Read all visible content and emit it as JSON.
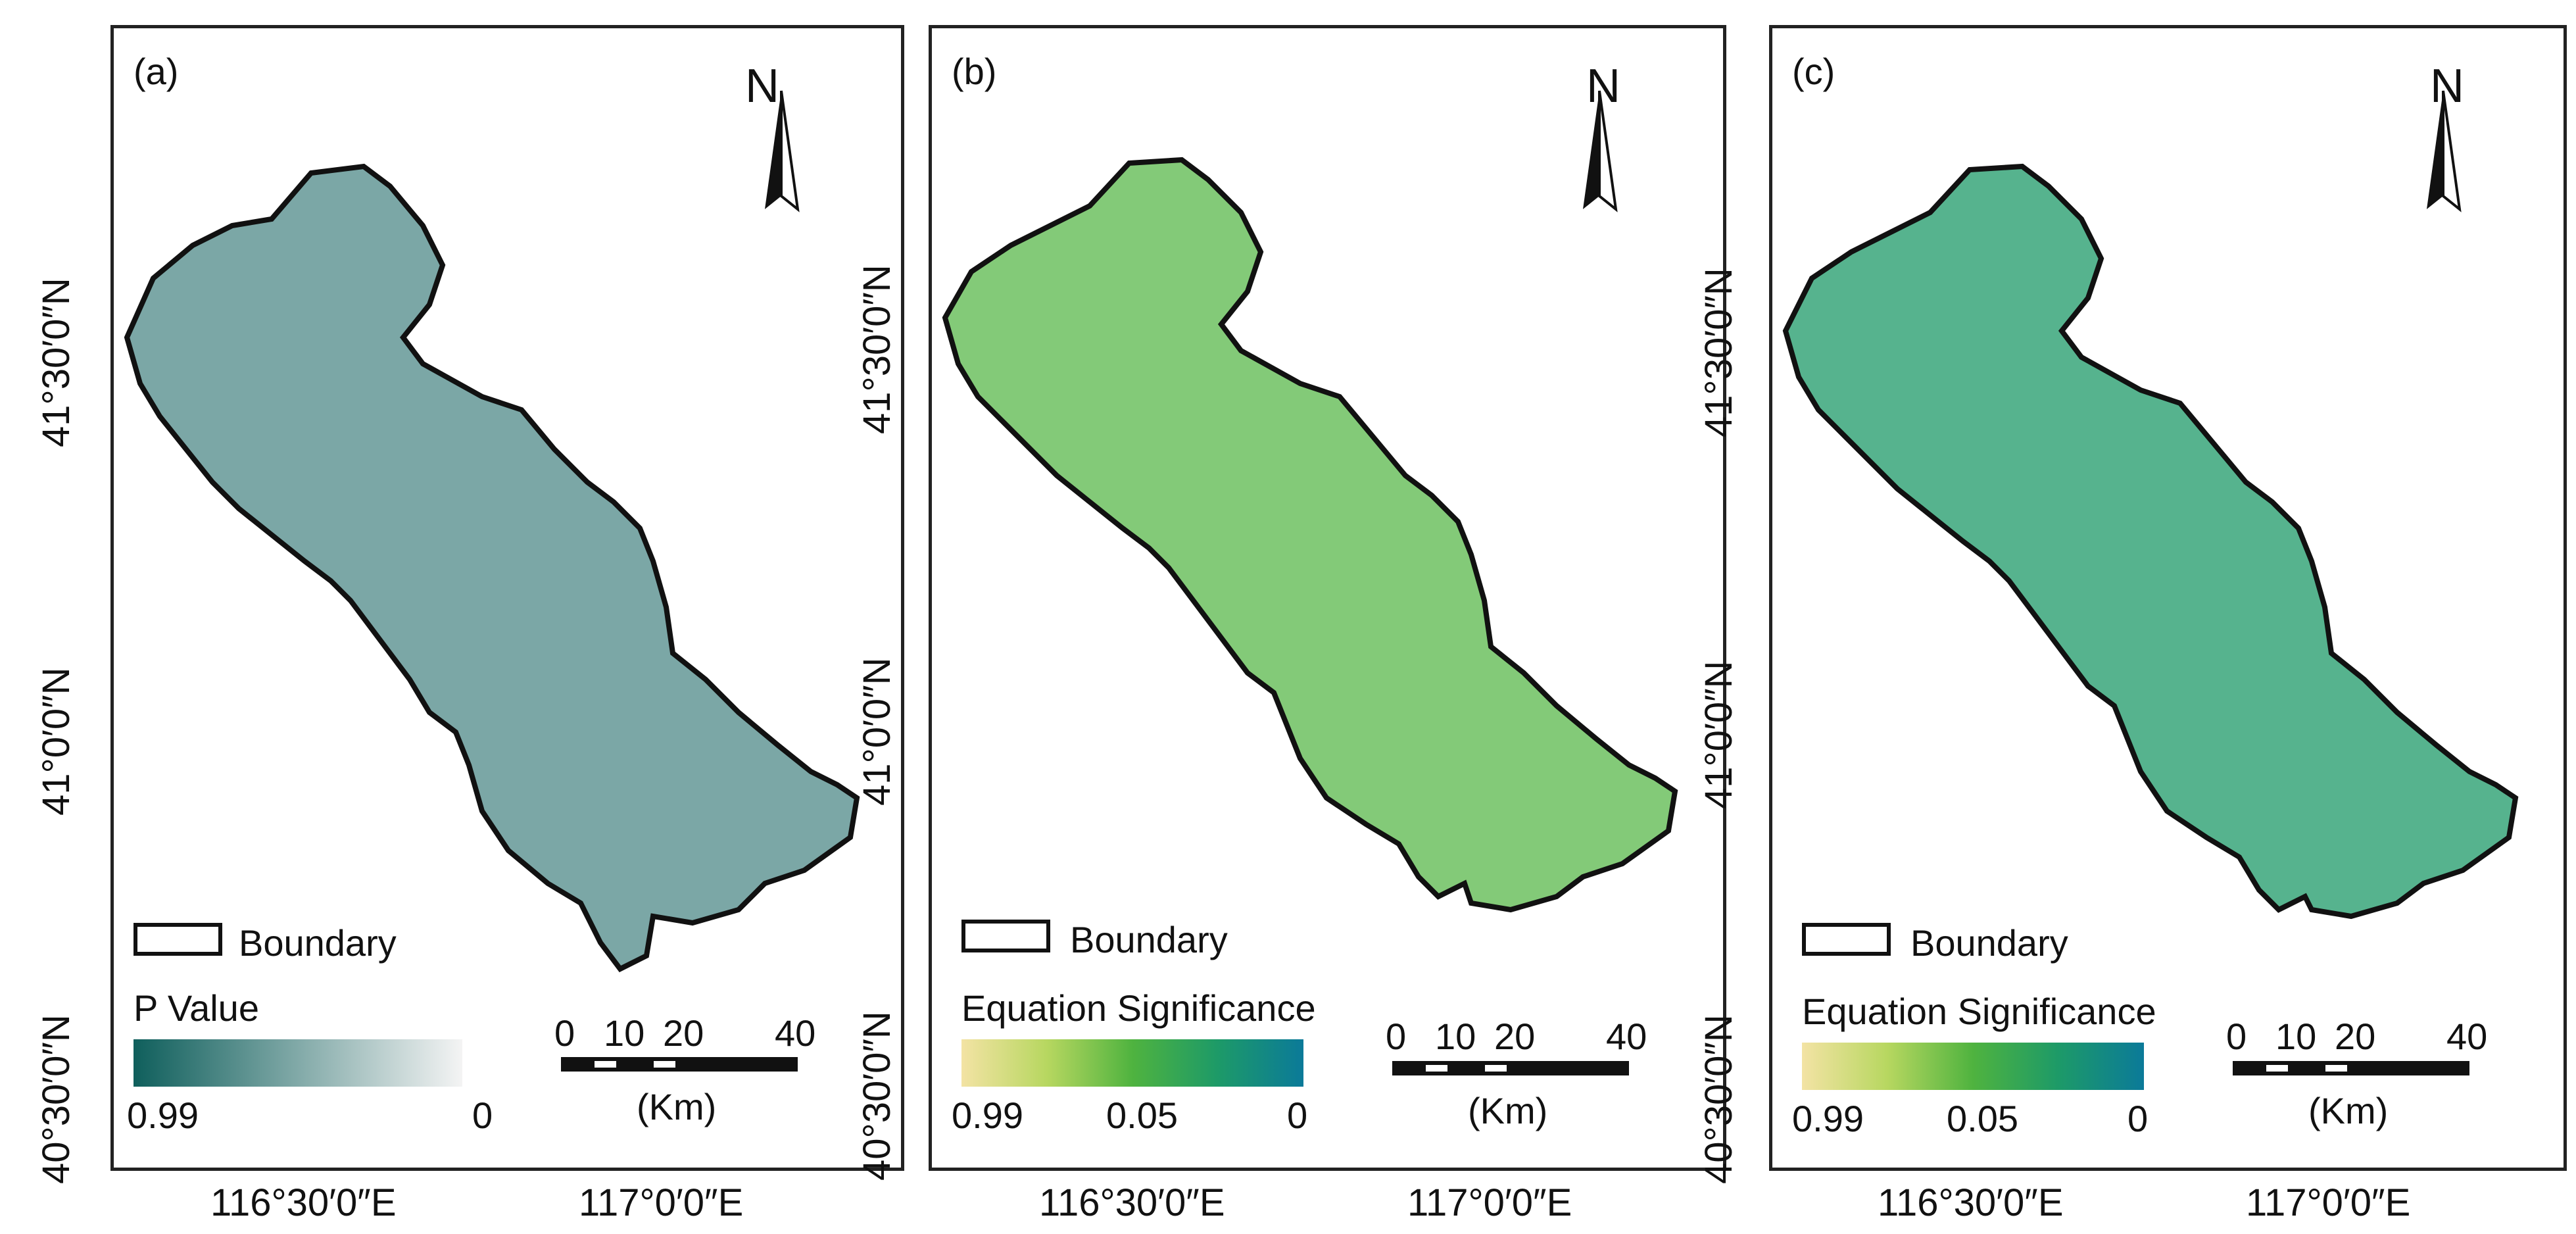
{
  "panels": [
    {
      "id": "a",
      "label": "(a)",
      "north": "N",
      "legend_boundary": "Boundary",
      "legend_title": "P Value",
      "legend_ticks": [
        "0.99",
        "0"
      ],
      "gradient_colors": [
        "#0f5f5c",
        "#f4f4f4"
      ],
      "scale_ticks": [
        "0",
        "10",
        "20",
        "40"
      ],
      "scale_unit": "(Km)",
      "y_ticks": [
        "41°30′0″N",
        "41°0′0″N",
        "40°30′0″N"
      ],
      "x_ticks": [
        "116°30′0″E",
        "117°0′0″E"
      ]
    },
    {
      "id": "b",
      "label": "(b)",
      "north": "N",
      "legend_boundary": "Boundary",
      "legend_title": "Equation Significance",
      "legend_ticks": [
        "0.99",
        "0.05",
        "0"
      ],
      "gradient_colors": [
        "#f3e3a4",
        "#b7d760",
        "#4fb33f",
        "#1d9a68",
        "#0b7a99"
      ],
      "scale_ticks": [
        "0",
        "10",
        "20",
        "40"
      ],
      "scale_unit": "(Km)",
      "y_ticks": [
        "41°30′0″N",
        "41°0′0″N",
        "40°30′0″N"
      ],
      "x_ticks": [
        "116°30′0″E",
        "117°0′0″E"
      ]
    },
    {
      "id": "c",
      "label": "(c)",
      "north": "N",
      "legend_boundary": "Boundary",
      "legend_title": "Equation Significance",
      "legend_ticks": [
        "0.99",
        "0.05",
        "0"
      ],
      "gradient_colors": [
        "#f3e3a4",
        "#b7d760",
        "#4fb33f",
        "#1d9a68",
        "#0b7a99"
      ],
      "scale_ticks": [
        "0",
        "10",
        "20",
        "40"
      ],
      "scale_unit": "(Km)",
      "y_ticks": [
        "41°30′0″N",
        "41°0′0″N",
        "40°30′0″N"
      ],
      "x_ticks": [
        "116°30′0″E",
        "117°0′0″E"
      ]
    }
  ]
}
